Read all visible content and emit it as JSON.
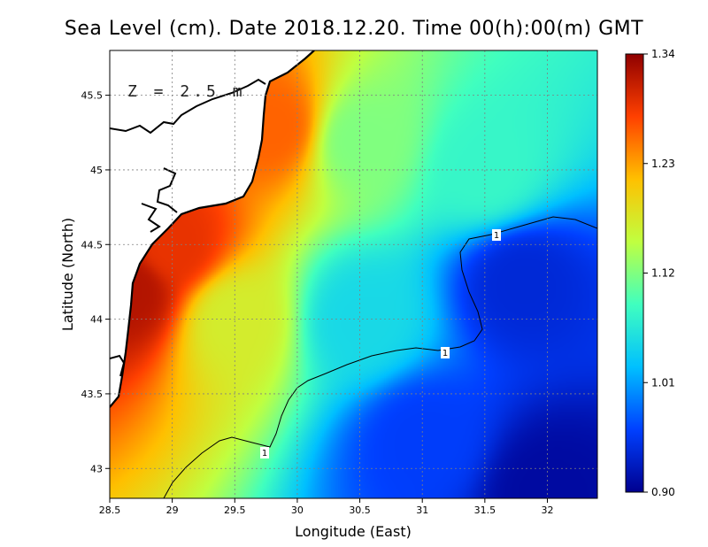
{
  "title": "Sea Level (cm). Date 2018.12.20. Time 00(h):00(m) GMT",
  "depth_label": "Z = 2.5 m",
  "x_axis": {
    "label": "Longitude (East)",
    "ticks": [
      "28.5",
      "29",
      "29.5",
      "30",
      "30.5",
      "31",
      "31.5",
      "32"
    ]
  },
  "y_axis": {
    "label": "Latitude (North)",
    "ticks": [
      "43",
      "43.5",
      "44",
      "44.5",
      "45",
      "45.5"
    ]
  },
  "colorbar": {
    "ticks": [
      "0.90",
      "1.01",
      "1.12",
      "1.23",
      "1.34"
    ],
    "colors": [
      "#00008f",
      "#0040ff",
      "#00c0ff",
      "#40ffbf",
      "#c0ff40",
      "#ffc000",
      "#ff4000",
      "#8f0000"
    ]
  },
  "contour_label": "1",
  "chart_data": {
    "type": "heatmap",
    "title": "Sea Level (cm). Date 2018.12.20. Time 00(h):00(m) GMT",
    "xlabel": "Longitude (East)",
    "ylabel": "Latitude (North)",
    "xlim": [
      28.5,
      32.4
    ],
    "ylim": [
      42.8,
      45.8
    ],
    "zlim": [
      0.9,
      1.34
    ],
    "grid": true,
    "annotation": "Z = 2.5 m",
    "contour_levels": [
      1
    ],
    "field_samples": [
      {
        "lon": 28.65,
        "lat": 44.2,
        "value": 1.32
      },
      {
        "lon": 29.0,
        "lat": 44.5,
        "value": 1.29
      },
      {
        "lon": 29.8,
        "lat": 45.3,
        "value": 1.26
      },
      {
        "lon": 29.5,
        "lat": 44.0,
        "value": 1.17
      },
      {
        "lon": 30.5,
        "lat": 45.2,
        "value": 1.12
      },
      {
        "lon": 31.5,
        "lat": 45.0,
        "value": 1.08
      },
      {
        "lon": 30.5,
        "lat": 44.0,
        "value": 1.05
      },
      {
        "lon": 31.8,
        "lat": 44.25,
        "value": 0.94
      },
      {
        "lon": 31.0,
        "lat": 43.2,
        "value": 0.96
      },
      {
        "lon": 32.0,
        "lat": 42.85,
        "value": 0.91
      }
    ]
  }
}
